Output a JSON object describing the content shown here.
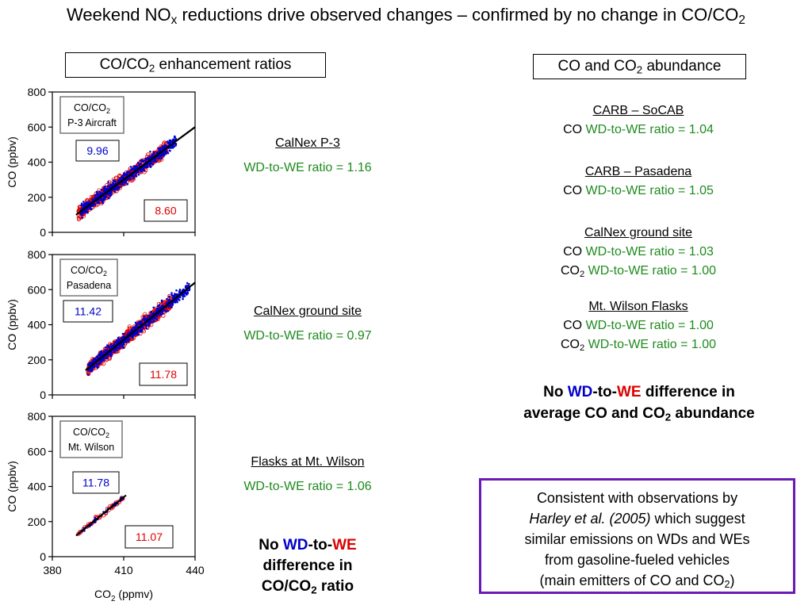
{
  "title": {
    "pre": "Weekend NO",
    "sub1": "x",
    "mid": " reductions drive observed changes – confirmed by no change in CO/CO",
    "sub2": "2"
  },
  "left_header": {
    "pre": "CO/CO",
    "sub": "2",
    "post": " enhancement ratios"
  },
  "right_header": {
    "pre": "CO and CO",
    "sub": "2",
    "post": " abundance"
  },
  "mid_labels": [
    {
      "name": "CalNex P-3",
      "ratio": "WD-to-WE ratio = 1.16"
    },
    {
      "name": "CalNex ground site",
      "ratio": "WD-to-WE ratio = 0.97"
    },
    {
      "name": "Flasks at Mt. Wilson",
      "ratio": "WD-to-WE ratio = 1.06"
    }
  ],
  "mid_conclusion": {
    "no": "No ",
    "wd": "WD",
    "to": "-to-",
    "we": "WE",
    "line2": "difference in",
    "line3_pre": "CO/CO",
    "line3_sub": "2",
    "line3_post": " ratio"
  },
  "abundance": [
    {
      "name": "CARB – SoCAB",
      "rows": [
        {
          "species": "CO",
          "species_sub": "",
          "ratio": "WD-to-WE ratio = 1.04"
        }
      ]
    },
    {
      "name": "CARB – Pasadena",
      "rows": [
        {
          "species": "CO",
          "species_sub": "",
          "ratio": "WD-to-WE ratio = 1.05"
        }
      ]
    },
    {
      "name": "CalNex ground site",
      "rows": [
        {
          "species": "CO",
          "species_sub": "",
          "ratio": "WD-to-WE ratio = 1.03"
        },
        {
          "species": "CO",
          "species_sub": "2",
          "ratio": "WD-to-WE ratio = 1.00"
        }
      ]
    },
    {
      "name": "Mt. Wilson Flasks",
      "rows": [
        {
          "species": "CO",
          "species_sub": "",
          "ratio": "WD-to-WE ratio = 1.00"
        },
        {
          "species": "CO",
          "species_sub": "2",
          "ratio": "WD-to-WE ratio = 1.00"
        }
      ]
    }
  ],
  "right_conclusion": {
    "no": "No ",
    "wd": "WD",
    "to": "-to-",
    "we": "WE",
    "post1": " difference in",
    "line2_pre": "average CO and CO",
    "line2_sub": "2",
    "line2_post": " abundance"
  },
  "purple_box": {
    "line1": "Consistent with observations by",
    "line2_italic": "Harley et al. (2005)",
    "line2_rest": " which suggest",
    "line3": "similar emissions on WDs and WEs",
    "line4": "from gasoline-fueled vehicles",
    "line5_pre": "(main emitters of CO and CO",
    "line5_sub": "2",
    "line5_post": ")"
  },
  "colors": {
    "weekday": "#0000cc",
    "weekend": "#dd0000",
    "ratio_text": "#1e8a1e",
    "box_border": "#6a1bb5"
  },
  "chart_data": [
    {
      "type": "scatter",
      "panel_label": [
        "CO/CO2",
        "P-3 Aircraft"
      ],
      "ylabel": "CO (ppbv)",
      "ylim": [
        0,
        800
      ],
      "yticks": [
        "0",
        "200",
        "400",
        "600",
        "800"
      ],
      "xlim": [
        380,
        440
      ],
      "weekday_ratio": "9.96",
      "weekend_ratio": "8.60",
      "fit_line": {
        "x": [
          390,
          440
        ],
        "y": [
          100,
          600
        ]
      },
      "series": [
        {
          "name": "Weekday",
          "color": "#0000cc",
          "x_range": [
            392,
            432
          ],
          "y_center_slope": 9.96
        },
        {
          "name": "Weekend",
          "color": "#dd0000",
          "x_range": [
            391,
            428
          ],
          "y_center_slope": 8.6
        }
      ]
    },
    {
      "type": "scatter",
      "panel_label": [
        "CO/CO2",
        "Pasadena"
      ],
      "ylabel": "CO (ppbv)",
      "ylim": [
        0,
        800
      ],
      "yticks": [
        "0",
        "200",
        "400",
        "600",
        "800"
      ],
      "xlim": [
        380,
        440
      ],
      "weekday_ratio": "11.42",
      "weekend_ratio": "11.78",
      "fit_line": {
        "x": [
          394,
          440
        ],
        "y": [
          140,
          640
        ]
      },
      "series": [
        {
          "name": "Weekday",
          "color": "#0000cc",
          "x_range": [
            395,
            438
          ],
          "y_center_slope": 11.42
        },
        {
          "name": "Weekend",
          "color": "#dd0000",
          "x_range": [
            395,
            430
          ],
          "y_center_slope": 11.78
        }
      ]
    },
    {
      "type": "scatter",
      "panel_label": [
        "CO/CO2",
        "Mt. Wilson"
      ],
      "ylabel": "CO (ppbv)",
      "ylim": [
        0,
        800
      ],
      "yticks": [
        "0",
        "200",
        "400",
        "600",
        "800"
      ],
      "xlim": [
        380,
        440
      ],
      "xticks": [
        "380",
        "410",
        "440"
      ],
      "xlabel_pre": "CO",
      "xlabel_sub": "2",
      "xlabel_post": " (ppmv)",
      "weekday_ratio": "11.78",
      "weekend_ratio": "11.07",
      "fit_line": {
        "x": [
          390,
          411
        ],
        "y": [
          120,
          350
        ]
      },
      "series": [
        {
          "name": "Weekday",
          "color": "#0000cc",
          "x_range": [
            392,
            410
          ],
          "y_center_slope": 11.78
        },
        {
          "name": "Weekend",
          "color": "#dd0000",
          "x_range": [
            391,
            411
          ],
          "y_center_slope": 11.07
        }
      ]
    }
  ]
}
